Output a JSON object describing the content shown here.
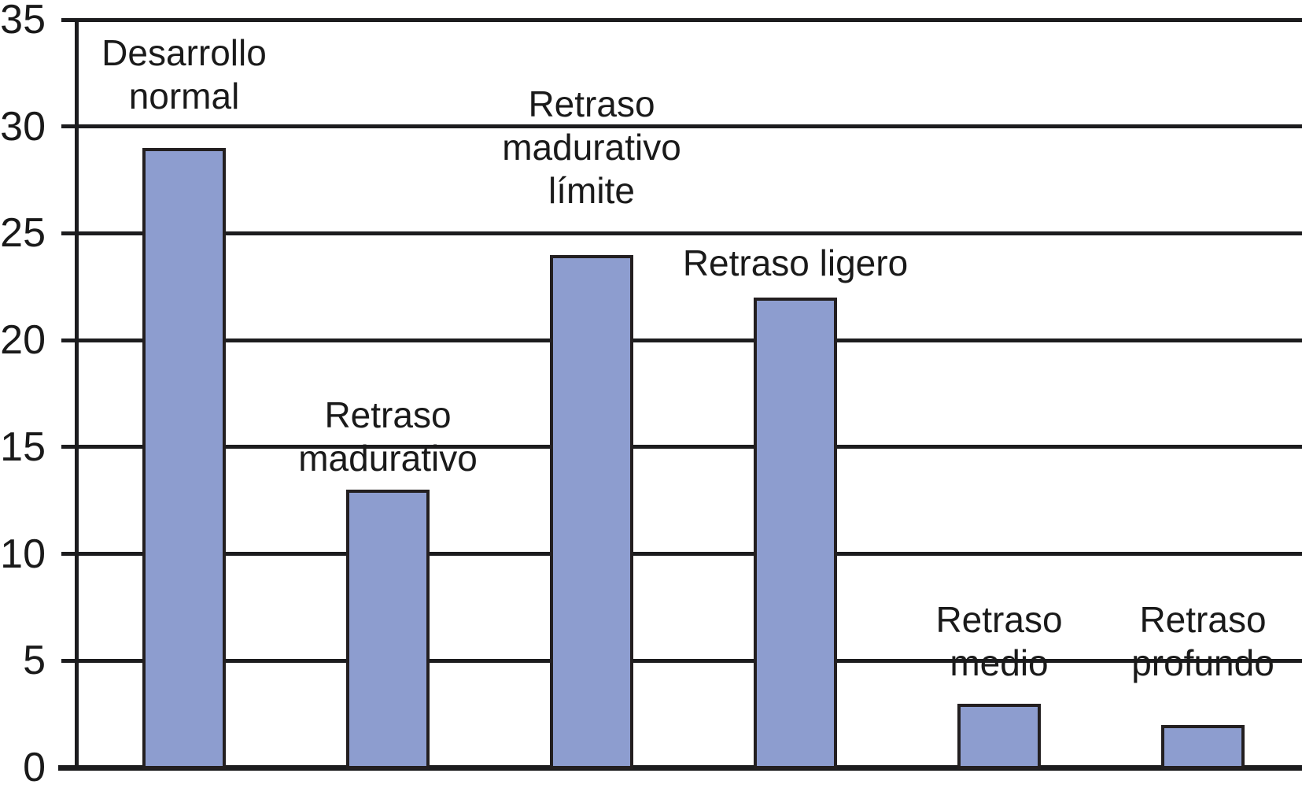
{
  "chart_data": {
    "type": "bar",
    "title": "",
    "xlabel": "",
    "ylabel": "",
    "categories": [
      {
        "label": "Desarrollo normal",
        "label_lines": [
          "Desarrollo",
          "normal"
        ]
      },
      {
        "label": "Retraso madurativo",
        "label_lines": [
          "Retraso",
          "madurativo"
        ]
      },
      {
        "label": "Retraso madurativo límite",
        "label_lines": [
          "Retraso",
          "madurativo",
          "límite"
        ]
      },
      {
        "label": "Retraso ligero",
        "label_lines": [
          "Retraso ligero"
        ]
      },
      {
        "label": "Retraso medio",
        "label_lines": [
          "Retraso",
          "medio"
        ]
      },
      {
        "label": "Retraso profundo",
        "label_lines": [
          "Retraso",
          "profundo"
        ]
      }
    ],
    "values": [
      29,
      13,
      24,
      22,
      3,
      2
    ],
    "y_ticks": [
      0,
      5,
      10,
      15,
      20,
      25,
      30,
      35
    ],
    "ylim": [
      0,
      35
    ],
    "grid": "horizontal",
    "legend": "none",
    "colors": {
      "bar_fill": "#8d9dcf",
      "bar_border": "#231f20",
      "grid_line": "#1c1c1e",
      "axis_line": "#1c1c1e",
      "text": "#1a1a1a"
    }
  }
}
